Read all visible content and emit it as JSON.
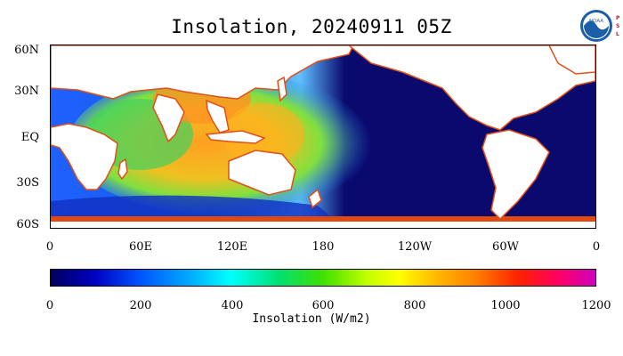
{
  "title": "Insolation, 20240911 05Z",
  "logo": {
    "top_text": "NOAA",
    "side_text": "PSL",
    "icon": "noaa-logo"
  },
  "map": {
    "lat_labels": [
      "60N",
      "30N",
      "EQ",
      "30S",
      "60S"
    ],
    "lon_labels": [
      "0",
      "60E",
      "120E",
      "180",
      "120W",
      "60W",
      "0"
    ],
    "land_color": "#ffffff",
    "night_ocean_color": "#0a0a6e",
    "coast_color": "#e0501a"
  },
  "colorbar": {
    "ticks": [
      "0",
      "200",
      "400",
      "600",
      "800",
      "1000",
      "1200"
    ],
    "label": "Insolation (W/m2)",
    "range": [
      0,
      1200
    ]
  }
}
